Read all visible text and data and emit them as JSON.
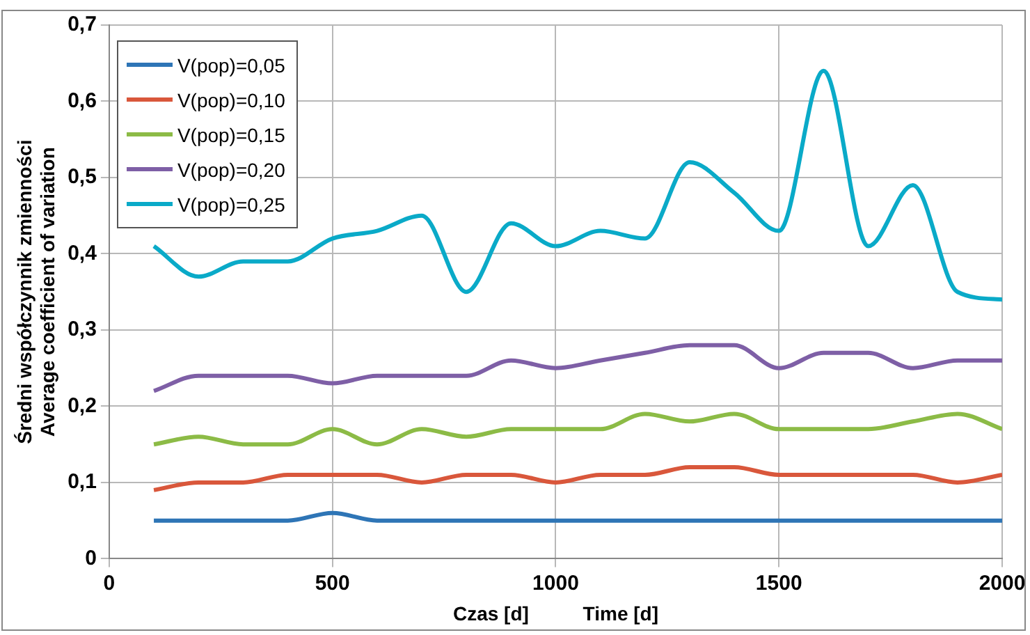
{
  "chart_data": {
    "type": "line",
    "xlabel": "Czas [d]          Time [d]",
    "ylabel": "Średni współczynnik zmienności\nAverage coefficient of variation",
    "x": [
      100,
      200,
      300,
      400,
      500,
      600,
      700,
      800,
      900,
      1000,
      1100,
      1200,
      1300,
      1400,
      1500,
      1600,
      1700,
      1800,
      1900,
      2000
    ],
    "series": [
      {
        "name": "V(pop)=0,05",
        "color": "#2e75b6",
        "values": [
          0.05,
          0.05,
          0.05,
          0.05,
          0.06,
          0.05,
          0.05,
          0.05,
          0.05,
          0.05,
          0.05,
          0.05,
          0.05,
          0.05,
          0.05,
          0.05,
          0.05,
          0.05,
          0.05,
          0.05
        ]
      },
      {
        "name": "V(pop)=0,10",
        "color": "#d9573b",
        "values": [
          0.09,
          0.1,
          0.1,
          0.11,
          0.11,
          0.11,
          0.1,
          0.11,
          0.11,
          0.1,
          0.11,
          0.11,
          0.12,
          0.12,
          0.11,
          0.11,
          0.11,
          0.11,
          0.1,
          0.11
        ]
      },
      {
        "name": "V(pop)=0,15",
        "color": "#8cbb46",
        "values": [
          0.15,
          0.16,
          0.15,
          0.15,
          0.17,
          0.15,
          0.17,
          0.16,
          0.17,
          0.17,
          0.17,
          0.19,
          0.18,
          0.19,
          0.17,
          0.17,
          0.17,
          0.18,
          0.19,
          0.17
        ]
      },
      {
        "name": "V(pop)=0,20",
        "color": "#7e5fa6",
        "values": [
          0.22,
          0.24,
          0.24,
          0.24,
          0.23,
          0.24,
          0.24,
          0.24,
          0.26,
          0.25,
          0.26,
          0.27,
          0.28,
          0.28,
          0.25,
          0.27,
          0.27,
          0.25,
          0.26,
          0.26
        ]
      },
      {
        "name": "V(pop)=0,25",
        "color": "#0aaac8",
        "values": [
          0.41,
          0.37,
          0.39,
          0.39,
          0.42,
          0.43,
          0.45,
          0.35,
          0.44,
          0.41,
          0.43,
          0.42,
          0.52,
          0.48,
          0.43,
          0.64,
          0.41,
          0.49,
          0.35,
          0.34
        ]
      }
    ],
    "xlim": [
      0,
      2000
    ],
    "xticks": [
      0,
      500,
      1000,
      1500,
      2000
    ],
    "ylim": [
      0,
      0.7
    ],
    "yticks": [
      0,
      {
        "value": 0.1,
        "label": "0,1"
      },
      {
        "value": 0.2,
        "label": "0,2"
      },
      {
        "value": 0.3,
        "label": "0,3"
      },
      {
        "value": 0.4,
        "label": "0,4"
      },
      {
        "value": 0.5,
        "label": "0,5"
      },
      {
        "value": 0.6,
        "label": "0,6"
      },
      {
        "value": 0.7,
        "label": "0,7"
      }
    ],
    "grid": true,
    "legend": "top left",
    "marker": "none",
    "line_style": "solid"
  }
}
